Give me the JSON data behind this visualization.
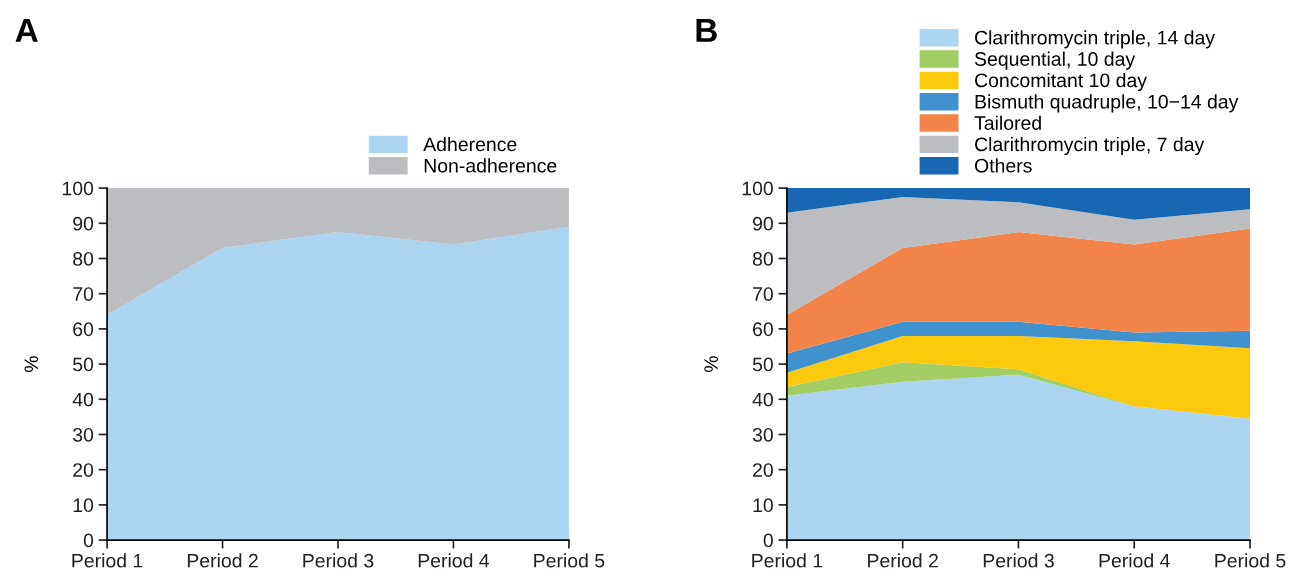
{
  "chart_data": [
    {
      "type": "area",
      "title": "A",
      "ylabel": "%",
      "stacked": true,
      "categories": [
        "Period 1",
        "Period 2",
        "Period 3",
        "Period 4",
        "Period 5"
      ],
      "ylim": [
        0,
        100
      ],
      "yticks": [
        0,
        10,
        20,
        30,
        40,
        50,
        60,
        70,
        80,
        90,
        100
      ],
      "legend": "top right",
      "series": [
        {
          "name": "Adherence",
          "color": "#abd5f0",
          "values": [
            64,
            83,
            87.5,
            84,
            89
          ]
        },
        {
          "name": "Non-adherence",
          "color": "#bcbdc1",
          "values": [
            36,
            17,
            12.5,
            16,
            11
          ]
        }
      ]
    },
    {
      "type": "area",
      "title": "B",
      "ylabel": "%",
      "stacked": true,
      "categories": [
        "Period 1",
        "Period 2",
        "Period 3",
        "Period 4",
        "Period 5"
      ],
      "ylim": [
        0,
        100
      ],
      "yticks": [
        0,
        10,
        20,
        30,
        40,
        50,
        60,
        70,
        80,
        90,
        100
      ],
      "legend": "top right",
      "series": [
        {
          "name": "Clarithromycin triple, 14 day",
          "color": "#abd5f0",
          "values": [
            41,
            45,
            47,
            38,
            34.5
          ]
        },
        {
          "name": "Sequential, 10 day",
          "color": "#a2cd62",
          "values": [
            2.5,
            5.5,
            1.5,
            0,
            0
          ]
        },
        {
          "name": "Concomitant 10 day",
          "color": "#fdc90d",
          "values": [
            4,
            7.5,
            9.5,
            18.5,
            20
          ]
        },
        {
          "name": "Bismuth quadruple, 10−14 day",
          "color": "#4092cf",
          "values": [
            5.5,
            4,
            4,
            2.5,
            5
          ]
        },
        {
          "name": "Tailored",
          "color": "#f38449",
          "values": [
            11,
            21,
            25.5,
            25,
            29
          ]
        },
        {
          "name": "Clarithromycin triple, 7 day",
          "color": "#bcbdc1",
          "values": [
            29,
            14.5,
            8.5,
            7,
            5.5
          ]
        },
        {
          "name": "Others",
          "color": "#1767b3",
          "values": [
            7,
            2.5,
            4,
            9,
            6
          ]
        }
      ]
    }
  ]
}
